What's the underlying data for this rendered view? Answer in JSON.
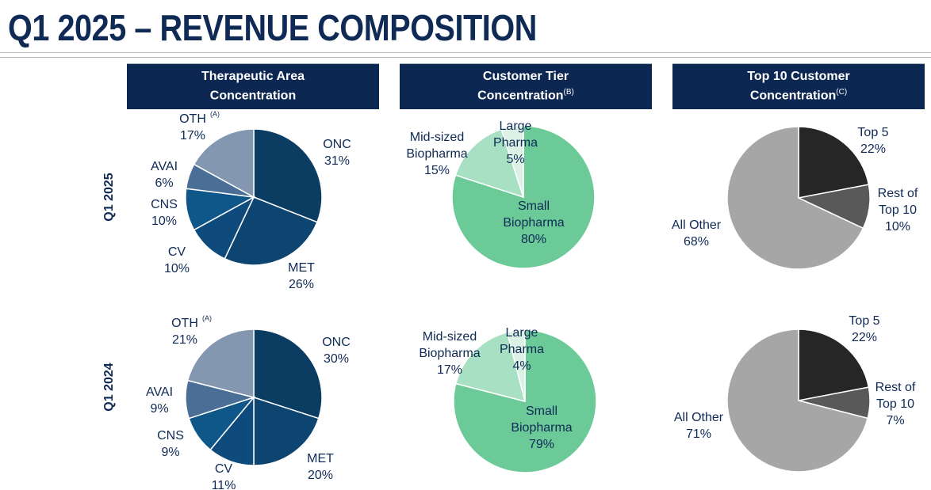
{
  "page": {
    "title": "Q1 2025 – REVENUE COMPOSITION"
  },
  "headers": [
    {
      "line1": "Therapeutic Area",
      "line2": "Concentration",
      "footnote": ""
    },
    {
      "line1": "Customer Tier",
      "line2": "Concentration",
      "footnote": "(B)"
    },
    {
      "line1": "Top 10 Customer",
      "line2": "Concentration",
      "footnote": "(C)"
    }
  ],
  "row_labels": [
    "Q1 2025",
    "Q1 2024"
  ],
  "chart_data": [
    {
      "type": "pie",
      "title": "Therapeutic Area Concentration",
      "period": "Q1 2025",
      "slices": [
        {
          "label": "ONC",
          "value": 31,
          "display": "31%",
          "color": "#0b3d63",
          "footnote": ""
        },
        {
          "label": "MET",
          "value": 26,
          "display": "26%",
          "color": "#0e4470",
          "footnote": ""
        },
        {
          "label": "CV",
          "value": 10,
          "display": "10%",
          "color": "#0e4b7c",
          "footnote": ""
        },
        {
          "label": "CNS",
          "value": 10,
          "display": "10%",
          "color": "#0f5689",
          "footnote": ""
        },
        {
          "label": "AVAI",
          "value": 6,
          "display": "6%",
          "color": "#4a6e96",
          "footnote": ""
        },
        {
          "label": "OTH",
          "value": 17,
          "display": "17%",
          "color": "#8497b0",
          "footnote": "(A)"
        }
      ]
    },
    {
      "type": "pie",
      "title": "Customer Tier Concentration",
      "period": "Q1 2025",
      "slices": [
        {
          "label": "Small Biopharma",
          "value": 80,
          "display": "80%",
          "color": "#6bca98"
        },
        {
          "label": "Mid-sized Biopharma",
          "value": 15,
          "display": "15%",
          "color": "#a8e0c4"
        },
        {
          "label": "Large Pharma",
          "value": 5,
          "display": "5%",
          "color": "#dcf1e6"
        }
      ]
    },
    {
      "type": "pie",
      "title": "Top 10 Customer Concentration",
      "period": "Q1 2025",
      "slices": [
        {
          "label": "Top 5",
          "value": 22,
          "display": "22%",
          "color": "#262626"
        },
        {
          "label": "Rest of Top 10",
          "value": 10,
          "display": "10%",
          "color": "#595959"
        },
        {
          "label": "All Other",
          "value": 68,
          "display": "68%",
          "color": "#a6a6a6"
        }
      ]
    },
    {
      "type": "pie",
      "title": "Therapeutic Area Concentration",
      "period": "Q1 2024",
      "slices": [
        {
          "label": "ONC",
          "value": 30,
          "display": "30%",
          "color": "#0b3d63",
          "footnote": ""
        },
        {
          "label": "MET",
          "value": 20,
          "display": "20%",
          "color": "#0e4470",
          "footnote": ""
        },
        {
          "label": "CV",
          "value": 11,
          "display": "11%",
          "color": "#0e4b7c",
          "footnote": ""
        },
        {
          "label": "CNS",
          "value": 9,
          "display": "9%",
          "color": "#0f5689",
          "footnote": ""
        },
        {
          "label": "AVAI",
          "value": 9,
          "display": "9%",
          "color": "#4a6e96",
          "footnote": ""
        },
        {
          "label": "OTH",
          "value": 21,
          "display": "21%",
          "color": "#8497b0",
          "footnote": "(A)"
        }
      ]
    },
    {
      "type": "pie",
      "title": "Customer Tier Concentration",
      "period": "Q1 2024",
      "slices": [
        {
          "label": "Small Biopharma",
          "value": 79,
          "display": "79%",
          "color": "#6bca98"
        },
        {
          "label": "Mid-sized Biopharma",
          "value": 17,
          "display": "17%",
          "color": "#a8e0c4"
        },
        {
          "label": "Large Pharma",
          "value": 4,
          "display": "4%",
          "color": "#dcf1e6"
        }
      ]
    },
    {
      "type": "pie",
      "title": "Top 10 Customer Concentration",
      "period": "Q1 2024",
      "slices": [
        {
          "label": "Top 5",
          "value": 22,
          "display": "22%",
          "color": "#262626"
        },
        {
          "label": "Rest of Top 10",
          "value": 7,
          "display": "7%",
          "color": "#595959"
        },
        {
          "label": "All Other",
          "value": 71,
          "display": "71%",
          "color": "#a6a6a6"
        }
      ]
    }
  ]
}
